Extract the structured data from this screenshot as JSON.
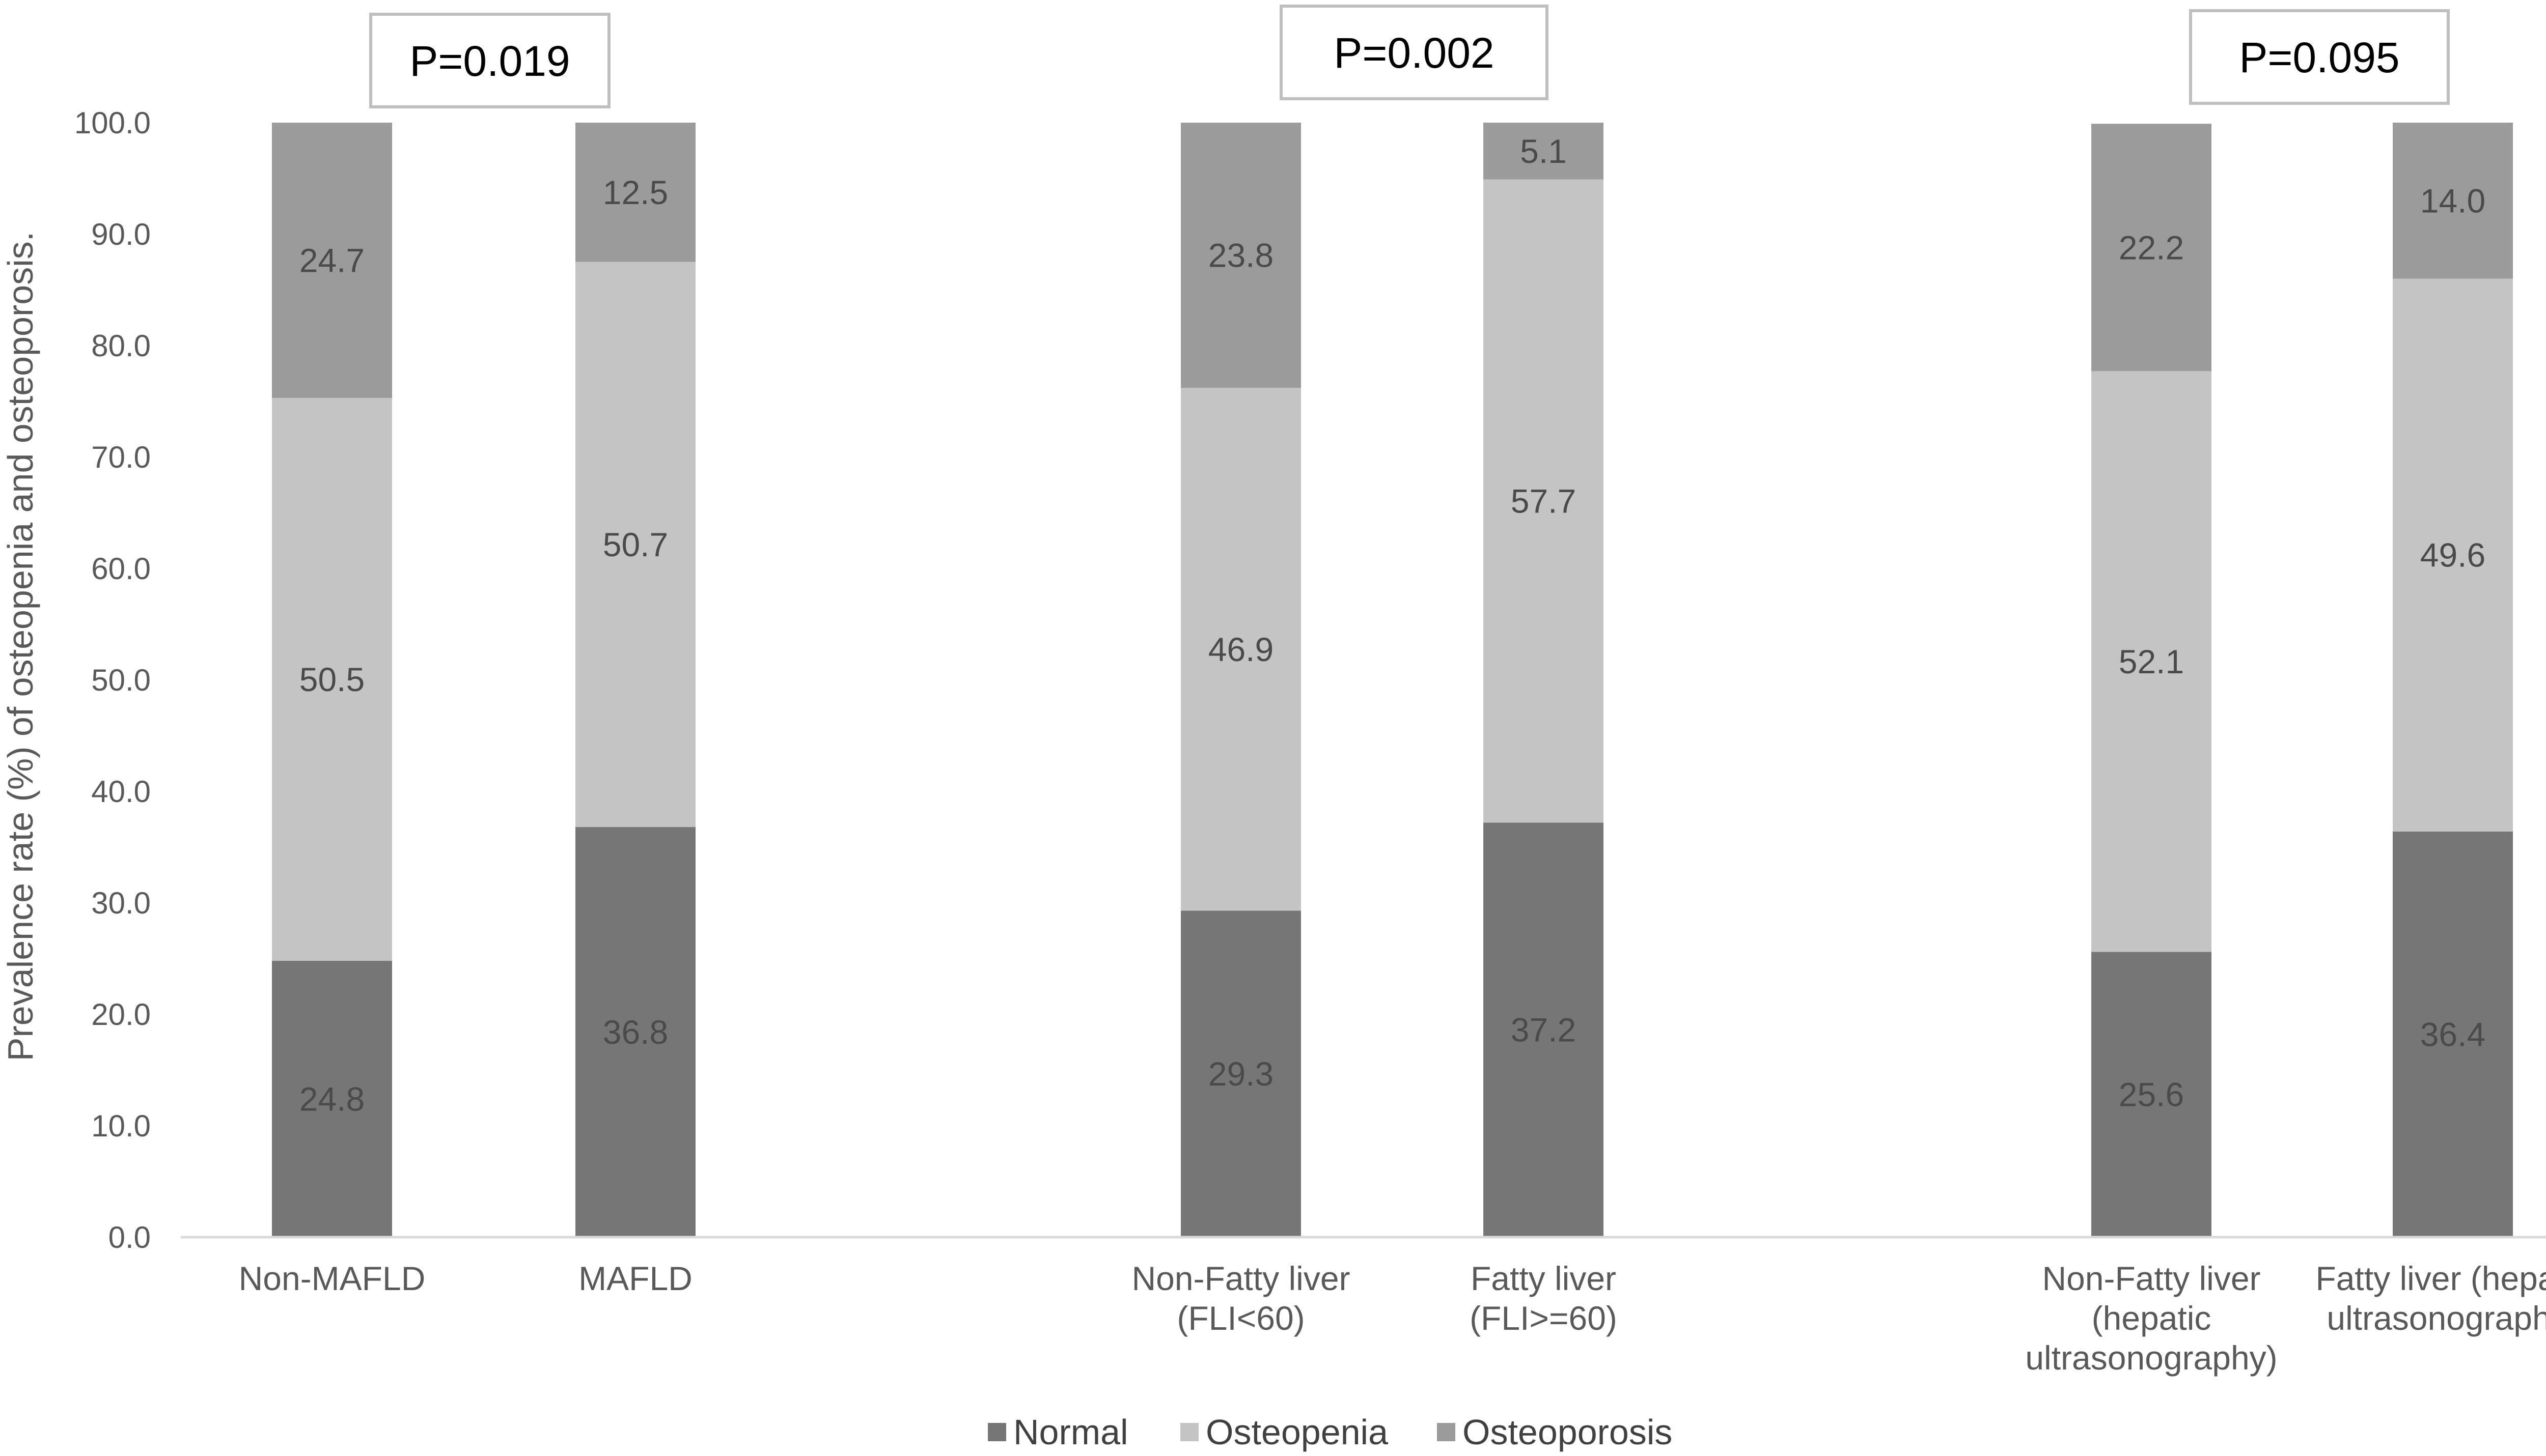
{
  "chart_data": {
    "type": "bar",
    "stacked": true,
    "ylabel": "Prevalence rate (%) of osteopenia and osteoporosis.",
    "ylim": [
      0,
      100
    ],
    "yticks": [
      "0.0",
      "10.0",
      "20.0",
      "30.0",
      "40.0",
      "50.0",
      "60.0",
      "70.0",
      "80.0",
      "90.0",
      "100.0"
    ],
    "grid": false,
    "legend_position": "bottom",
    "categories": [
      [
        "Non-MAFLD"
      ],
      [
        "MAFLD"
      ],
      [
        "Non-Fatty liver",
        "(FLI<60)"
      ],
      [
        "Fatty liver",
        "(FLI>=60)"
      ],
      [
        "Non-Fatty liver",
        "(hepatic",
        "ultrasonography)"
      ],
      [
        "Fatty liver (hepatic",
        "ultrasonography)"
      ]
    ],
    "series": [
      {
        "name": "Normal",
        "color": "#767676",
        "values": [
          24.8,
          36.8,
          29.3,
          37.2,
          25.6,
          36.4
        ]
      },
      {
        "name": "Osteopenia",
        "color": "#c4c4c4",
        "values": [
          50.5,
          50.7,
          46.9,
          57.7,
          52.1,
          49.6
        ]
      },
      {
        "name": "Osteoporosis",
        "color": "#9b9b9b",
        "values": [
          24.7,
          12.5,
          23.8,
          5.1,
          22.2,
          14.0
        ]
      }
    ],
    "annotations": [
      {
        "text": "P=0.019",
        "group": 0
      },
      {
        "text": "P=0.002",
        "group": 1
      },
      {
        "text": "P=0.095",
        "group": 2
      }
    ]
  }
}
